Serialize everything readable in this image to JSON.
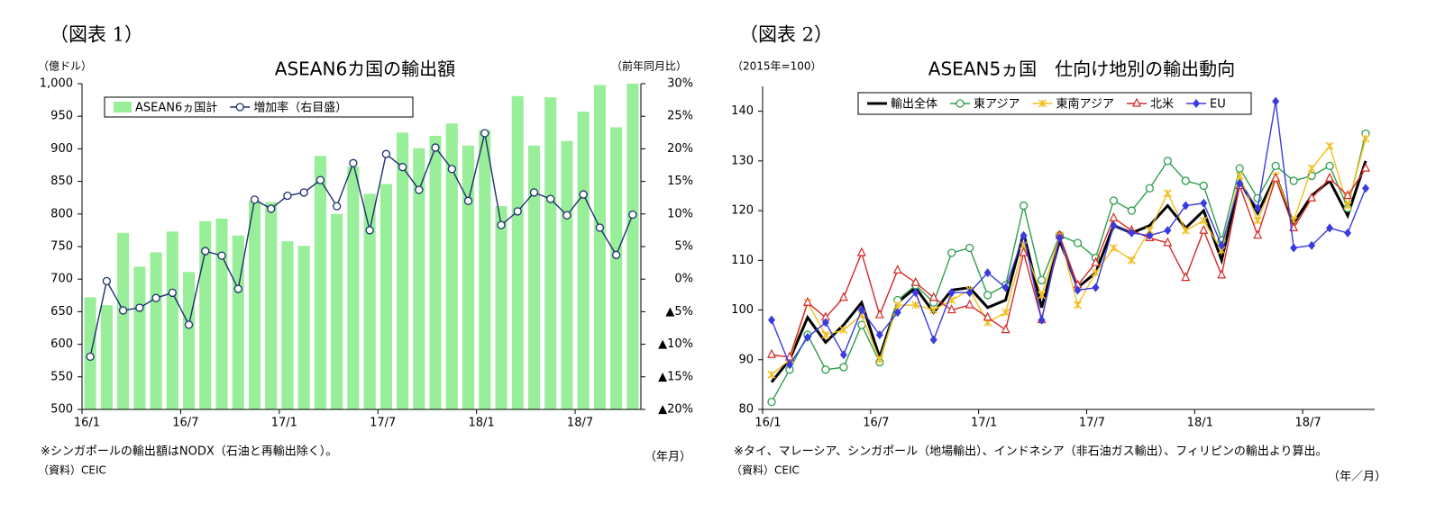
{
  "chart_data": [
    {
      "type": "bar",
      "figure_label": "（図表 1）",
      "title": "ASEAN6カ国の輸出額",
      "y_label": "（億ドル）",
      "y2_label": "（前年同月比）",
      "x_label": "（年月）",
      "note": "※シンガポールの輸出額はNODX（石油と再輸出除く）。",
      "source": "（資料）CEIC",
      "categories": [
        "16/1",
        null,
        null,
        null,
        null,
        null,
        "16/7",
        null,
        null,
        null,
        null,
        null,
        "17/1",
        null,
        null,
        null,
        null,
        null,
        "17/7",
        null,
        null,
        null,
        null,
        null,
        "18/1",
        null,
        null,
        null,
        null,
        null,
        "18/7",
        null,
        null,
        null
      ],
      "series": [
        {
          "name": "ASEAN6ヵ国計",
          "color": "#99ee99",
          "type": "bar",
          "values": [
            672,
            660,
            771,
            719,
            741,
            773,
            711,
            789,
            793,
            767,
            820,
            818,
            758,
            751,
            889,
            800,
            873,
            831,
            846,
            925,
            901,
            920,
            939,
            905,
            929,
            812,
            981,
            905,
            979,
            912,
            957,
            998,
            933,
            1000
          ]
        },
        {
          "name": "増加率（右目盛）",
          "color": "#1f2f6f",
          "type": "line",
          "axis": "y2",
          "marker": "circle",
          "values": [
            -11.9,
            -0.3,
            -4.8,
            -4.4,
            -2.9,
            -2.1,
            -7,
            4.3,
            3.6,
            -1.5,
            12.2,
            10.8,
            12.8,
            13.3,
            15.2,
            11.2,
            17.8,
            7.5,
            19.2,
            17.2,
            13.7,
            20.2,
            16.9,
            12,
            22.4,
            8.3,
            10.4,
            13.3,
            12.3,
            9.8,
            13,
            7.9,
            3.7,
            9.9
          ]
        }
      ],
      "ylim": [
        500,
        1000
      ],
      "yticks": [
        500,
        550,
        600,
        650,
        700,
        750,
        800,
        850,
        900,
        950,
        {
          "value": 1000,
          "label": "1,000"
        }
      ],
      "y2lim": [
        -20,
        30
      ],
      "y2ticks": [
        {
          "value": 30,
          "label": "30%"
        },
        {
          "value": 25,
          "label": "25%"
        },
        {
          "value": 20,
          "label": "20%"
        },
        {
          "value": 15,
          "label": "15%"
        },
        {
          "value": 10,
          "label": "10%"
        },
        {
          "value": 5,
          "label": "5%"
        },
        {
          "value": 0,
          "label": "0%"
        },
        {
          "value": -5,
          "label": "▲5%"
        },
        {
          "value": -10,
          "label": "▲10%"
        },
        {
          "value": -15,
          "label": "▲15%"
        },
        {
          "value": -20,
          "label": "▲20%"
        }
      ],
      "grid": false
    },
    {
      "type": "line",
      "figure_label": "（図表 2）",
      "title": "ASEAN5ヵ国　仕向け地別の輸出動向",
      "y_label": "（2015年=100）",
      "x_label": "（年／月）",
      "note": "※タイ、マレーシア、シンガポール（地場輸出）、インドネシア（非石油ガス輸出）、フィリピンの輸出より算出。",
      "source": "（資料）CEIC",
      "categories": [
        "16/1",
        null,
        null,
        null,
        null,
        null,
        "16/7",
        null,
        null,
        null,
        null,
        null,
        "17/1",
        null,
        null,
        null,
        null,
        null,
        "17/7",
        null,
        null,
        null,
        null,
        null,
        "18/1",
        null,
        null,
        null,
        null,
        null,
        "18/7",
        null,
        null,
        null
      ],
      "series": [
        {
          "name": "輸出全体",
          "color": "#000000",
          "marker": "none",
          "values": [
            85.5,
            90,
            98.5,
            93.5,
            97,
            101.5,
            90.5,
            101.5,
            104.5,
            99.5,
            104,
            104.5,
            100.5,
            102,
            115.5,
            100.5,
            114,
            104.5,
            107.5,
            117,
            115.5,
            117,
            121,
            116.5,
            120,
            110,
            126,
            119.5,
            127,
            117.5,
            123,
            126,
            119,
            130
          ]
        },
        {
          "name": "東アジア",
          "color": "#2e9e4e",
          "marker": "circle",
          "values": [
            81.5,
            88,
            95,
            88,
            88.5,
            97,
            89.5,
            102,
            105,
            101.5,
            111.5,
            112.5,
            103,
            105,
            121,
            106,
            115,
            113.5,
            110.5,
            122,
            120,
            124.5,
            130,
            126,
            125,
            114,
            128.5,
            122.5,
            129,
            126,
            127,
            129,
            120.5,
            135.5
          ]
        },
        {
          "name": "東南アジア",
          "color": "#f0c020",
          "marker": "x",
          "values": [
            87,
            90,
            101.5,
            95,
            96,
            99,
            90,
            101,
            101,
            100,
            102,
            104,
            97.5,
            99.5,
            113,
            103,
            115,
            101,
            107.5,
            112.5,
            110,
            116,
            123.5,
            116,
            118,
            112,
            127,
            118,
            127,
            118,
            128.5,
            133,
            121,
            134.5
          ]
        },
        {
          "name": "北米",
          "color": "#d62828",
          "marker": "triangle",
          "values": [
            91,
            90.5,
            101.5,
            98.5,
            102.5,
            111.5,
            99,
            108,
            105.5,
            102.5,
            100,
            101,
            98.5,
            96,
            111.5,
            98,
            115,
            105,
            109.5,
            118.5,
            116,
            114.5,
            113.5,
            106.5,
            116,
            107,
            125,
            115,
            126.5,
            116.5,
            122.5,
            126.5,
            123,
            128.5
          ]
        },
        {
          "name": "EU",
          "color": "#3a3ae0",
          "marker": "diamond",
          "values": [
            98,
            89,
            94.5,
            97.5,
            91,
            100,
            95,
            99.5,
            103.5,
            94,
            103.5,
            103.5,
            107.5,
            104.5,
            115,
            98,
            114.5,
            104,
            104.5,
            117,
            115.5,
            115,
            116,
            121,
            121.5,
            113,
            125.5,
            120.5,
            142,
            112.5,
            113,
            116.5,
            115.5,
            124.5
          ]
        }
      ],
      "ylim": [
        80,
        145
      ],
      "yticks": [
        80,
        90,
        100,
        110,
        120,
        130,
        140
      ],
      "grid": false
    }
  ]
}
